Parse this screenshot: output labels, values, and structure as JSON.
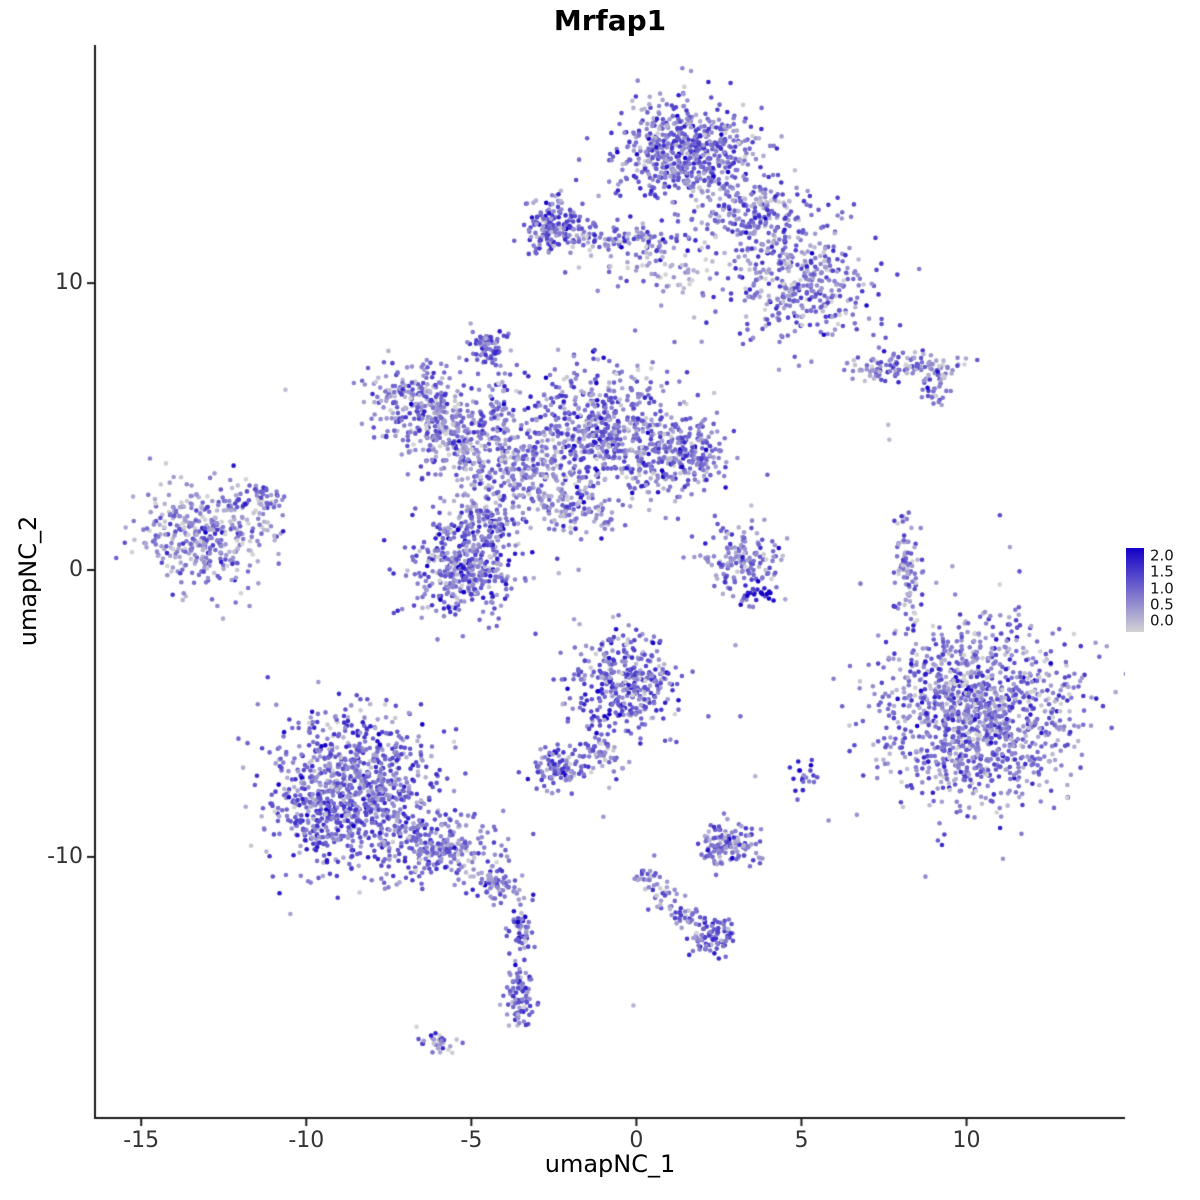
{
  "title": "Mrfap1",
  "axes": {
    "x_label": "umapNC_1",
    "y_label": "umapNC_2",
    "x_ticks": [
      -15,
      -10,
      -5,
      0,
      5,
      10
    ],
    "y_ticks": [
      -10,
      0,
      10
    ]
  },
  "legend": {
    "labels": [
      "2.0",
      "1.5",
      "1.0",
      "0.5",
      "0.0"
    ],
    "min": 0.0,
    "max": 2.0,
    "low_color": "#D3D3D3",
    "high_color": "#1400C8"
  },
  "chart_data": {
    "type": "scatter",
    "title": "Mrfap1",
    "xlabel": "umapNC_1",
    "ylabel": "umapNC_2",
    "xlim": [
      -16.4,
      14.8
    ],
    "ylim": [
      -19.1,
      18.3
    ],
    "x_ticks": [
      -15,
      -10,
      -5,
      0,
      5,
      10
    ],
    "y_ticks": [
      -10,
      0,
      10
    ],
    "grid": false,
    "legend_position": "right",
    "point_radius": 2.3,
    "color_low": "#D3D3D3",
    "color_high": "#1400C8",
    "value_range": [
      0,
      2
    ],
    "expr_sd": 0.45,
    "clusters": [
      {
        "name": "top-main",
        "x": 1.57,
        "y": 14.66,
        "sx": 1.06,
        "sy": 0.87,
        "n": 600,
        "mean": 0.9
      },
      {
        "name": "top-arm",
        "x": 3.75,
        "y": 12.39,
        "sx": 0.91,
        "sy": 0.63,
        "n": 200,
        "mean": 0.85
      },
      {
        "name": "top-right",
        "x": 4.9,
        "y": 10.02,
        "sx": 1.15,
        "sy": 0.98,
        "n": 380,
        "mean": 0.85
      },
      {
        "name": "upper-left-dense",
        "x": -2.45,
        "y": 11.94,
        "sx": 0.45,
        "sy": 0.49,
        "n": 160,
        "mean": 1.0
      },
      {
        "name": "upper-band",
        "x": -0.39,
        "y": 11.52,
        "sx": 0.97,
        "sy": 0.24,
        "n": 110,
        "mean": 0.8
      },
      {
        "name": "upper-sparse",
        "x": 0.51,
        "y": 10.47,
        "sx": 1.21,
        "sy": 0.63,
        "n": 70,
        "mean": 0.5
      },
      {
        "name": "small-upper-mid",
        "x": -4.57,
        "y": 7.68,
        "sx": 0.3,
        "sy": 0.31,
        "n": 70,
        "mean": 1.0
      },
      {
        "name": "wisp-upper-mid",
        "x": -4.18,
        "y": 6.11,
        "sx": 0.2,
        "sy": 0.5,
        "n": 30,
        "mean": 0.9
      },
      {
        "name": "mid-left-a",
        "x": -6.6,
        "y": 5.76,
        "sx": 0.85,
        "sy": 0.7,
        "n": 240,
        "mean": 0.75
      },
      {
        "name": "mid-left-b",
        "x": -5.54,
        "y": 4.61,
        "sx": 0.73,
        "sy": 0.63,
        "n": 200,
        "mean": 0.8
      },
      {
        "name": "mid-main",
        "x": -0.91,
        "y": 4.96,
        "sx": 1.27,
        "sy": 1.15,
        "n": 550,
        "mean": 0.9
      },
      {
        "name": "mid-right",
        "x": 1.33,
        "y": 4.01,
        "sx": 0.76,
        "sy": 0.7,
        "n": 240,
        "mean": 1.0
      },
      {
        "name": "mid-center",
        "x": -3.57,
        "y": 3.56,
        "sx": 1.09,
        "sy": 0.91,
        "n": 320,
        "mean": 0.8
      },
      {
        "name": "mid-arm",
        "x": -1.91,
        "y": 2.09,
        "sx": 0.85,
        "sy": 0.42,
        "n": 110,
        "mean": 0.7
      },
      {
        "name": "mid-bridge",
        "x": -4.54,
        "y": 1.75,
        "sx": 0.45,
        "sy": 0.45,
        "n": 80,
        "mean": 0.8
      },
      {
        "name": "mid-lower",
        "x": -5.24,
        "y": 0.17,
        "sx": 0.85,
        "sy": 0.87,
        "n": 420,
        "mean": 0.95
      },
      {
        "name": "far-left",
        "x": -13.1,
        "y": 1.22,
        "sx": 0.91,
        "sy": 0.94,
        "n": 380,
        "mean": 0.65
      },
      {
        "name": "far-left-arm",
        "x": -11.38,
        "y": 2.44,
        "sx": 0.36,
        "sy": 0.28,
        "n": 50,
        "mean": 0.7
      },
      {
        "name": "center-small",
        "x": 3.09,
        "y": 0.42,
        "sx": 0.61,
        "sy": 0.66,
        "n": 150,
        "mean": 0.8
      },
      {
        "name": "center-small-dark",
        "x": 3.57,
        "y": -0.77,
        "sx": 0.36,
        "sy": 0.21,
        "n": 25,
        "mean": 1.5
      },
      {
        "name": "right-sliver",
        "x": 8.23,
        "y": 0.0,
        "sx": 0.21,
        "sy": 0.91,
        "n": 90,
        "mean": 0.7
      },
      {
        "name": "right-upper",
        "x": 8.29,
        "y": 7.09,
        "sx": 0.97,
        "sy": 0.24,
        "n": 120,
        "mean": 0.8
      },
      {
        "name": "right-upper-tail",
        "x": 9.08,
        "y": 6.28,
        "sx": 0.24,
        "sy": 0.31,
        "n": 30,
        "mean": 0.9
      },
      {
        "name": "right-main",
        "x": 10.35,
        "y": -4.96,
        "sx": 1.45,
        "sy": 1.61,
        "n": 1200,
        "mean": 0.85
      },
      {
        "name": "center-mid",
        "x": -0.39,
        "y": -3.91,
        "sx": 0.76,
        "sy": 0.84,
        "n": 360,
        "mean": 1.0
      },
      {
        "name": "center-mid-trail",
        "x": -1.09,
        "y": -6.21,
        "sx": 0.3,
        "sy": 0.56,
        "n": 60,
        "mean": 0.9
      },
      {
        "name": "center-left-small",
        "x": -2.36,
        "y": -6.98,
        "sx": 0.39,
        "sy": 0.35,
        "n": 110,
        "mean": 0.9
      },
      {
        "name": "bottom-left-main",
        "x": -8.66,
        "y": -7.68,
        "sx": 1.27,
        "sy": 1.33,
        "n": 950,
        "mean": 0.95
      },
      {
        "name": "bottom-left-arm",
        "x": -6.05,
        "y": -9.7,
        "sx": 0.91,
        "sy": 0.63,
        "n": 240,
        "mean": 0.85
      },
      {
        "name": "bottom-tail-a",
        "x": -4.24,
        "y": -10.96,
        "sx": 0.42,
        "sy": 0.35,
        "n": 70,
        "mean": 0.8
      },
      {
        "name": "bottom-tail-b",
        "x": -3.51,
        "y": -12.39,
        "sx": 0.21,
        "sy": 0.49,
        "n": 50,
        "mean": 0.9
      },
      {
        "name": "bottom-sliver",
        "x": -3.57,
        "y": -14.83,
        "sx": 0.24,
        "sy": 0.56,
        "n": 85,
        "mean": 1.0
      },
      {
        "name": "bottom-tiny",
        "x": -5.99,
        "y": -16.47,
        "sx": 0.27,
        "sy": 0.21,
        "n": 30,
        "mean": 0.8
      },
      {
        "name": "bottom-chain-main",
        "x": 2.36,
        "y": -12.77,
        "sx": 0.3,
        "sy": 0.31,
        "n": 85,
        "mean": 1.1
      },
      {
        "name": "bottom-chain-1",
        "x": 1.51,
        "y": -12.15,
        "sx": 0.24,
        "sy": 0.24,
        "n": 30,
        "mean": 0.9
      },
      {
        "name": "bottom-chain-2",
        "x": 0.85,
        "y": -11.45,
        "sx": 0.24,
        "sy": 0.28,
        "n": 25,
        "mean": 0.8
      },
      {
        "name": "bottom-chain-3",
        "x": 0.3,
        "y": -10.75,
        "sx": 0.21,
        "sy": 0.24,
        "n": 22,
        "mean": 0.8
      },
      {
        "name": "bottom-mid-small",
        "x": 2.78,
        "y": -9.56,
        "sx": 0.48,
        "sy": 0.42,
        "n": 130,
        "mean": 0.9
      },
      {
        "name": "dark-pair",
        "x": 5.08,
        "y": -7.26,
        "sx": 0.18,
        "sy": 0.31,
        "n": 20,
        "mean": 1.5
      }
    ],
    "singletons": [
      [
        -10.63,
        6.28,
        0.2
      ],
      [
        -10.7,
        1.35,
        1.7
      ],
      [
        3.0,
        -2.62,
        0.5
      ],
      [
        2.18,
        -5.1,
        1.0
      ],
      [
        3.15,
        -5.1,
        1.0
      ],
      [
        3.6,
        -7.19,
        0.3
      ],
      [
        4.06,
        -0.8,
        2.0
      ],
      [
        -0.09,
        -15.18,
        0.3
      ],
      [
        0.54,
        -9.95,
        0.8
      ],
      [
        -1.0,
        -8.6,
        0.6
      ],
      [
        7.63,
        5.06,
        0.25
      ],
      [
        7.66,
        4.54,
        0.25
      ],
      [
        9.0,
        5.8,
        0.9
      ]
    ]
  }
}
